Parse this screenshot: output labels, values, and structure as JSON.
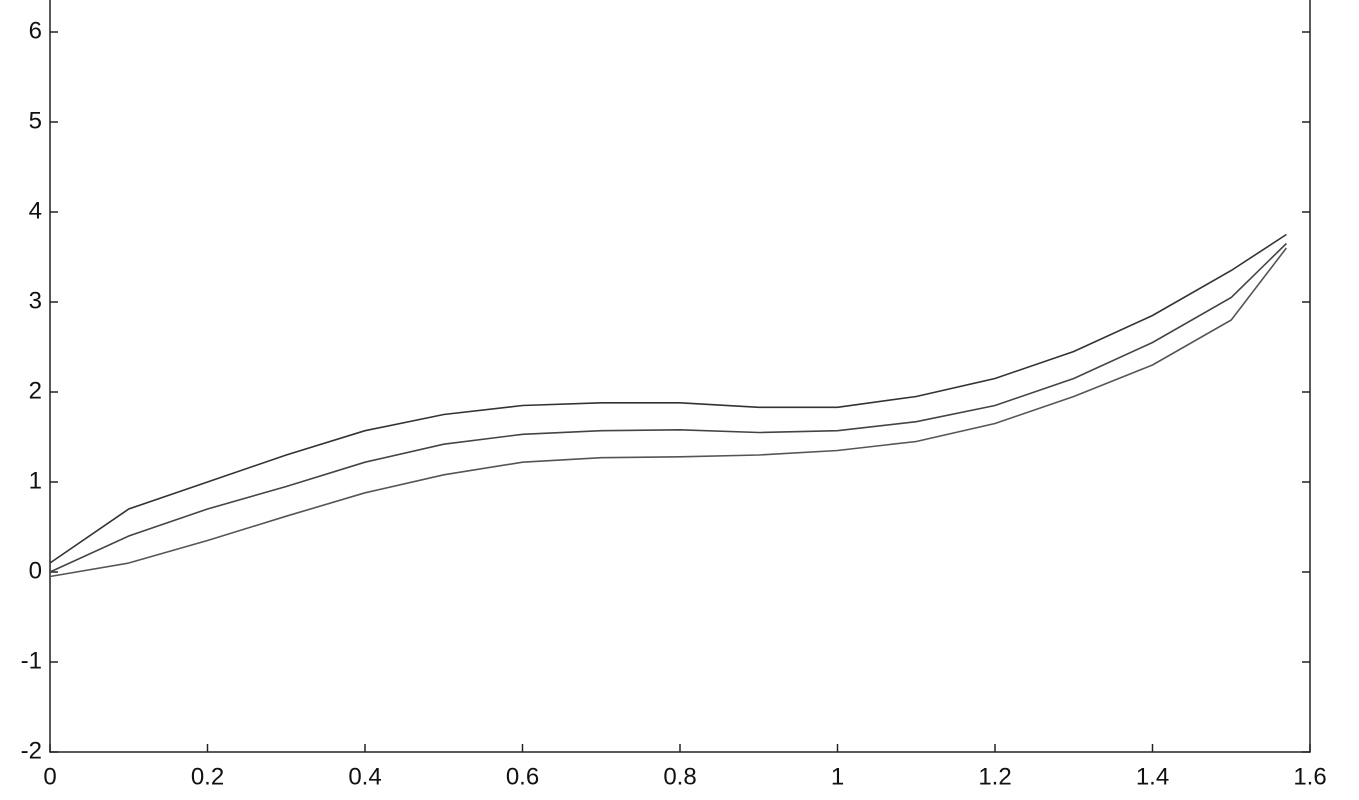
{
  "chart_data": {
    "type": "line",
    "x": [
      0,
      0.1,
      0.2,
      0.3,
      0.4,
      0.5,
      0.6,
      0.7,
      0.8,
      0.9,
      1.0,
      1.1,
      1.2,
      1.3,
      1.4,
      1.5,
      1.57
    ],
    "series": [
      {
        "color": "#333333",
        "values": [
          0.1,
          0.7,
          1.0,
          1.3,
          1.57,
          1.75,
          1.85,
          1.88,
          1.88,
          1.83,
          1.83,
          1.95,
          2.15,
          2.45,
          2.85,
          3.35,
          3.75
        ]
      },
      {
        "color": "#444444",
        "values": [
          0.0,
          0.4,
          0.7,
          0.95,
          1.22,
          1.42,
          1.53,
          1.57,
          1.58,
          1.55,
          1.57,
          1.67,
          1.85,
          2.15,
          2.55,
          3.05,
          3.65
        ]
      },
      {
        "color": "#555555",
        "values": [
          -0.05,
          0.1,
          0.35,
          0.62,
          0.88,
          1.08,
          1.22,
          1.27,
          1.28,
          1.3,
          1.35,
          1.45,
          1.65,
          1.95,
          2.3,
          2.8,
          3.6
        ]
      }
    ],
    "xlim": [
      0,
      1.6
    ],
    "xticks": [
      0,
      0.2,
      0.4,
      0.6,
      0.8,
      1,
      1.2,
      1.4,
      1.6
    ],
    "ylim": [
      -2,
      7
    ],
    "yticks": [
      -2,
      -1,
      0,
      1,
      2,
      3,
      4,
      5,
      6
    ]
  }
}
